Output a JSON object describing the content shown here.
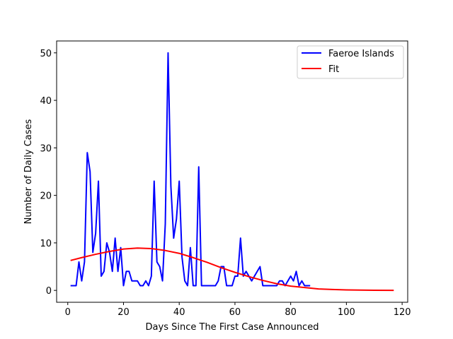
{
  "chart_data": {
    "type": "line",
    "xlabel": "Days Since The First Case Announced",
    "ylabel": "Number of Daily Cases",
    "xlim": [
      -4,
      122
    ],
    "ylim": [
      -2.5,
      52.5
    ],
    "xticks": [
      0,
      20,
      40,
      60,
      80,
      100,
      120
    ],
    "yticks": [
      0,
      10,
      20,
      30,
      40,
      50
    ],
    "grid": false,
    "legend_position": "top-right",
    "series": [
      {
        "name": "Faeroe Islands",
        "color": "#0000ff",
        "x": [
          1,
          2,
          3,
          4,
          5,
          6,
          7,
          8,
          9,
          10,
          11,
          12,
          13,
          14,
          15,
          16,
          17,
          18,
          19,
          20,
          21,
          22,
          23,
          24,
          25,
          26,
          27,
          28,
          29,
          30,
          31,
          32,
          33,
          34,
          35,
          36,
          37,
          38,
          39,
          40,
          41,
          42,
          43,
          44,
          45,
          46,
          47,
          48,
          49,
          50,
          51,
          52,
          53,
          54,
          55,
          56,
          57,
          58,
          59,
          60,
          61,
          62,
          63,
          64,
          65,
          66,
          67,
          68,
          69,
          70,
          71,
          72,
          73,
          74,
          75,
          76,
          77,
          78,
          79,
          80,
          81,
          82,
          83,
          84,
          85,
          86,
          87
        ],
        "y": [
          1,
          1,
          1,
          6,
          2,
          6,
          29,
          25,
          8,
          12,
          23,
          3,
          4,
          10,
          8,
          4,
          11,
          4,
          9,
          1,
          4,
          4,
          2,
          2,
          2,
          1,
          1,
          2,
          1,
          3,
          23,
          6,
          5,
          2,
          14,
          50,
          22,
          11,
          15,
          23,
          7,
          2,
          1,
          9,
          1,
          1,
          26,
          1,
          1,
          1,
          1,
          1,
          1,
          2,
          5,
          5,
          1,
          1,
          1,
          3,
          3,
          11,
          3,
          4,
          3,
          2,
          3,
          4,
          5,
          1,
          1,
          1,
          1,
          1,
          1,
          2,
          2,
          1,
          2,
          3,
          2,
          4,
          1,
          2,
          1,
          1,
          1
        ]
      },
      {
        "name": "Fit",
        "color": "#ff0000",
        "x": [
          1,
          5,
          10,
          15,
          20,
          25,
          30,
          35,
          40,
          45,
          50,
          55,
          60,
          65,
          70,
          75,
          80,
          85,
          90,
          95,
          100,
          105,
          110,
          117
        ],
        "y": [
          6.3,
          6.9,
          7.6,
          8.2,
          8.7,
          8.9,
          8.8,
          8.4,
          7.8,
          6.9,
          5.9,
          4.8,
          3.8,
          2.9,
          2.1,
          1.4,
          0.9,
          0.6,
          0.3,
          0.2,
          0.1,
          0.06,
          0.03,
          0.01
        ]
      }
    ]
  }
}
